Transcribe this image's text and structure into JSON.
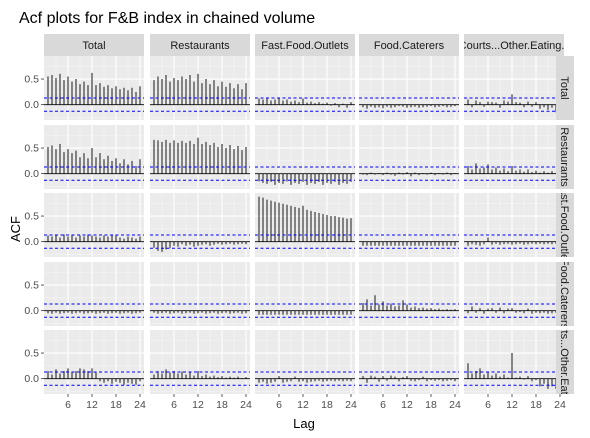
{
  "chart_data": {
    "type": "bar",
    "title": "Acf plots for F&B index in chained volume",
    "xlabel": "Lag",
    "ylabel": "ACF",
    "facet_labels": [
      "Total",
      "Restaurants",
      "Fast.Food.Outlets",
      "Food.Caterers",
      "Food.Courts...Other.Eating.Places"
    ],
    "x_ticks": [
      6,
      12,
      18,
      24
    ],
    "y_ticks": [
      0.0,
      0.5
    ],
    "ylim": [
      -0.3,
      0.95
    ],
    "xlim": [
      0,
      25
    ],
    "confidence_bound": 0.13,
    "lags": [
      1,
      2,
      3,
      4,
      5,
      6,
      7,
      8,
      9,
      10,
      11,
      12,
      13,
      14,
      15,
      16,
      17,
      18,
      19,
      20,
      21,
      22,
      23,
      24
    ],
    "panels": [
      [
        {
          "row": "Total",
          "col": "Total",
          "values": [
            0.55,
            0.58,
            0.52,
            0.6,
            0.48,
            0.55,
            0.45,
            0.5,
            0.4,
            0.45,
            0.38,
            0.62,
            0.38,
            0.42,
            0.35,
            0.38,
            0.32,
            0.36,
            0.3,
            0.33,
            0.28,
            0.33,
            0.25,
            0.36
          ]
        },
        {
          "row": "Total",
          "col": "Restaurants",
          "values": [
            0.48,
            0.55,
            0.5,
            0.58,
            0.45,
            0.52,
            0.48,
            0.55,
            0.5,
            0.58,
            0.45,
            0.6,
            0.42,
            0.5,
            0.4,
            0.48,
            0.36,
            0.45,
            0.35,
            0.42,
            0.32,
            0.4,
            0.3,
            0.42
          ]
        },
        {
          "row": "Total",
          "col": "Fast.Food.Outlets",
          "values": [
            0.12,
            0.1,
            0.13,
            0.08,
            0.1,
            0.12,
            0.08,
            0.1,
            0.06,
            0.08,
            0.05,
            0.12,
            0.04,
            0.06,
            0.03,
            0.05,
            0.02,
            0.04,
            -0.02,
            0.03,
            -0.05,
            0.02,
            -0.06,
            0.05
          ]
        },
        {
          "row": "Total",
          "col": "Food.Caterers",
          "values": [
            -0.05,
            -0.08,
            -0.04,
            -0.06,
            -0.05,
            -0.07,
            -0.04,
            -0.06,
            -0.05,
            -0.03,
            -0.04,
            -0.06,
            -0.05,
            -0.04,
            -0.06,
            -0.05,
            -0.04,
            -0.03,
            -0.05,
            -0.04,
            -0.03,
            -0.05,
            -0.04,
            -0.03
          ]
        },
        {
          "row": "Total",
          "col": "Food.Courts...Other.Eating.Places",
          "values": [
            0.1,
            -0.05,
            0.08,
            0.05,
            -0.04,
            0.06,
            0.05,
            0.04,
            -0.06,
            0.08,
            0.06,
            0.2,
            0.05,
            0.04,
            -0.05,
            0.06,
            -0.04,
            0.05,
            -0.08,
            -0.05,
            -0.1,
            -0.06,
            -0.15,
            0.1
          ]
        }
      ],
      [
        {
          "row": "Restaurants",
          "col": "Total",
          "values": [
            0.52,
            0.55,
            0.48,
            0.58,
            0.42,
            0.48,
            0.4,
            0.45,
            0.32,
            0.4,
            0.3,
            0.5,
            0.32,
            0.4,
            0.28,
            0.35,
            0.25,
            0.3,
            0.2,
            0.28,
            0.18,
            0.25,
            0.15,
            0.28
          ]
        },
        {
          "row": "Restaurants",
          "col": "Restaurants",
          "values": [
            0.66,
            0.65,
            0.62,
            0.66,
            0.6,
            0.65,
            0.6,
            0.64,
            0.6,
            0.64,
            0.58,
            0.7,
            0.58,
            0.62,
            0.56,
            0.6,
            0.52,
            0.58,
            0.5,
            0.56,
            0.48,
            0.54,
            0.46,
            0.52
          ]
        },
        {
          "row": "Restaurants",
          "col": "Fast.Food.Outlets",
          "values": [
            -0.15,
            -0.18,
            -0.2,
            -0.16,
            -0.22,
            -0.18,
            -0.2,
            -0.15,
            -0.22,
            -0.18,
            -0.2,
            -0.16,
            -0.22,
            -0.18,
            -0.2,
            -0.16,
            -0.22,
            -0.18,
            -0.2,
            -0.16,
            -0.22,
            -0.18,
            -0.2,
            -0.16
          ]
        },
        {
          "row": "Restaurants",
          "col": "Food.Caterers",
          "values": [
            -0.02,
            -0.03,
            0.02,
            -0.02,
            0.01,
            -0.03,
            0.02,
            -0.02,
            -0.04,
            0.02,
            -0.02,
            0.03,
            -0.05,
            0.02,
            -0.03,
            0.01,
            -0.02,
            0.02,
            -0.03,
            0.01,
            -0.02,
            0.02,
            -0.03,
            0.01
          ]
        },
        {
          "row": "Restaurants",
          "col": "Food.Courts...Other.Eating.Places",
          "values": [
            0.15,
            0.08,
            0.2,
            0.1,
            0.12,
            0.18,
            0.08,
            0.12,
            0.06,
            0.1,
            0.05,
            0.15,
            0.06,
            0.08,
            0.04,
            0.08,
            0.03,
            0.06,
            0.02,
            0.05,
            0.02,
            0.05,
            0.01,
            0.05
          ]
        }
      ],
      [
        {
          "row": "Fast.Food.Outlets",
          "col": "Total",
          "values": [
            0.12,
            0.1,
            0.12,
            0.08,
            0.14,
            0.1,
            0.12,
            0.08,
            0.12,
            0.1,
            0.14,
            0.12,
            0.1,
            0.08,
            0.12,
            0.1,
            0.14,
            0.12,
            0.08,
            0.06,
            0.1,
            0.08,
            0.06,
            0.1
          ]
        },
        {
          "row": "Fast.Food.Outlets",
          "col": "Restaurants",
          "values": [
            -0.12,
            -0.18,
            -0.2,
            -0.15,
            -0.12,
            -0.08,
            -0.1,
            -0.05,
            -0.08,
            -0.06,
            -0.1,
            -0.08,
            -0.06,
            -0.05,
            -0.08,
            -0.06,
            -0.04,
            -0.06,
            -0.05,
            -0.04,
            -0.06,
            -0.05,
            -0.04,
            -0.05
          ]
        },
        {
          "row": "Fast.Food.Outlets",
          "col": "Fast.Food.Outlets",
          "values": [
            0.88,
            0.86,
            0.82,
            0.8,
            0.78,
            0.76,
            0.74,
            0.72,
            0.7,
            0.68,
            0.66,
            0.7,
            0.62,
            0.6,
            0.58,
            0.56,
            0.54,
            0.52,
            0.5,
            0.5,
            0.48,
            0.47,
            0.45,
            0.46
          ]
        },
        {
          "row": "Fast.Food.Outlets",
          "col": "Food.Caterers",
          "values": [
            -0.08,
            -0.08,
            -0.08,
            -0.08,
            -0.08,
            -0.08,
            -0.08,
            -0.08,
            -0.08,
            -0.08,
            -0.08,
            -0.08,
            -0.08,
            -0.08,
            -0.08,
            -0.08,
            -0.08,
            -0.08,
            -0.08,
            -0.08,
            -0.08,
            -0.08,
            -0.08,
            -0.08
          ]
        },
        {
          "row": "Fast.Food.Outlets",
          "col": "Food.Courts...Other.Eating.Places",
          "values": [
            -0.08,
            -0.05,
            -0.06,
            -0.08,
            -0.05,
            0.08,
            -0.06,
            -0.04,
            -0.06,
            -0.05,
            -0.04,
            -0.06,
            -0.05,
            -0.04,
            -0.06,
            -0.05,
            -0.04,
            -0.05,
            -0.04,
            -0.05,
            -0.04,
            -0.05,
            -0.04,
            -0.05
          ]
        }
      ],
      [
        {
          "row": "Food.Caterers",
          "col": "Total",
          "values": [
            -0.05,
            -0.06,
            -0.04,
            -0.06,
            -0.05,
            -0.04,
            -0.06,
            -0.05,
            -0.04,
            -0.06,
            -0.05,
            -0.04,
            -0.06,
            -0.05,
            -0.04,
            -0.06,
            -0.05,
            -0.04,
            -0.06,
            -0.05,
            -0.04,
            -0.06,
            -0.05,
            -0.04
          ]
        },
        {
          "row": "Food.Caterers",
          "col": "Restaurants",
          "values": [
            -0.04,
            -0.06,
            -0.05,
            -0.04,
            -0.06,
            -0.05,
            -0.04,
            -0.06,
            -0.05,
            -0.04,
            -0.06,
            -0.05,
            -0.04,
            -0.06,
            -0.05,
            -0.04,
            -0.06,
            -0.05,
            -0.04,
            -0.06,
            -0.05,
            -0.04,
            -0.06,
            -0.05
          ]
        },
        {
          "row": "Food.Caterers",
          "col": "Fast.Food.Outlets",
          "values": [
            -0.08,
            -0.08,
            -0.08,
            -0.08,
            -0.08,
            -0.08,
            -0.08,
            -0.08,
            -0.08,
            -0.08,
            -0.08,
            -0.08,
            -0.08,
            -0.08,
            -0.08,
            -0.08,
            -0.08,
            -0.08,
            -0.08,
            -0.08,
            -0.08,
            -0.08,
            -0.08,
            -0.08
          ]
        },
        {
          "row": "Food.Caterers",
          "col": "Food.Caterers",
          "values": [
            0.15,
            0.22,
            0.1,
            0.3,
            0.12,
            0.18,
            0.1,
            0.14,
            0.08,
            0.1,
            0.2,
            0.12,
            0.06,
            0.08,
            0.05,
            0.06,
            0.04,
            0.05,
            0.03,
            0.04,
            0.02,
            0.03,
            0.02,
            0.03
          ]
        },
        {
          "row": "Food.Caterers",
          "col": "Food.Courts...Other.Eating.Places",
          "values": [
            -0.05,
            0.08,
            -0.04,
            0.05,
            -0.06,
            0.04,
            0.05,
            -0.04,
            0.06,
            -0.05,
            0.04,
            0.05,
            -0.04,
            -0.03,
            -0.05,
            0.04,
            -0.06,
            -0.04,
            -0.05,
            -0.04,
            -0.06,
            -0.05,
            -0.04,
            -0.05
          ]
        }
      ],
      [
        {
          "row": "Food.Courts...Other.Eating.Places",
          "col": "Total",
          "values": [
            0.15,
            0.08,
            0.18,
            0.1,
            0.15,
            0.2,
            0.12,
            0.15,
            0.2,
            0.18,
            0.15,
            0.2,
            0.12,
            -0.05,
            -0.08,
            -0.05,
            -0.1,
            -0.06,
            -0.08,
            -0.12,
            -0.08,
            -0.1,
            -0.12,
            -0.05
          ]
        },
        {
          "row": "Food.Courts...Other.Eating.Places",
          "col": "Restaurants",
          "values": [
            0.08,
            0.15,
            0.1,
            0.18,
            0.12,
            0.15,
            0.1,
            0.14,
            0.08,
            0.12,
            0.06,
            0.15,
            0.05,
            0.08,
            0.04,
            0.06,
            0.03,
            0.05,
            0.02,
            0.04,
            0.02,
            0.04,
            0.01,
            0.03
          ]
        },
        {
          "row": "Food.Courts...Other.Eating.Places",
          "col": "Fast.Food.Outlets",
          "values": [
            -0.08,
            -0.06,
            -0.1,
            -0.08,
            -0.06,
            0.05,
            -0.08,
            -0.06,
            -0.05,
            0.04,
            -0.06,
            -0.05,
            -0.08,
            -0.06,
            -0.05,
            -0.04,
            -0.06,
            -0.05,
            -0.04,
            -0.05,
            -0.04,
            -0.05,
            -0.04,
            -0.05
          ]
        },
        {
          "row": "Food.Courts...Other.Eating.Places",
          "col": "Food.Caterers",
          "values": [
            0.05,
            -0.08,
            0.06,
            0.04,
            -0.06,
            0.05,
            -0.04,
            0.06,
            0.04,
            -0.05,
            0.03,
            0.05,
            -0.04,
            -0.05,
            -0.03,
            0.04,
            -0.05,
            -0.03,
            -0.04,
            -0.03,
            -0.05,
            -0.04,
            -0.03,
            -0.05
          ]
        },
        {
          "row": "Food.Courts...Other.Eating.Places",
          "col": "Food.Courts...Other.Eating.Places",
          "values": [
            0.3,
            0.1,
            0.15,
            0.2,
            0.08,
            0.12,
            0.06,
            0.1,
            0.04,
            0.08,
            0.02,
            0.5,
            0.02,
            0.04,
            -0.02,
            0.05,
            -0.05,
            -0.03,
            -0.15,
            -0.1,
            -0.2,
            -0.15,
            -0.2,
            0.28
          ]
        }
      ]
    ],
    "colors": {
      "panel_bg": "#ebebeb",
      "strip_bg": "#d9d9d9",
      "grid_major": "#ffffff",
      "grid_minor": "#f5f5f5",
      "bar": "#000000",
      "bound": "#0000ff"
    }
  }
}
